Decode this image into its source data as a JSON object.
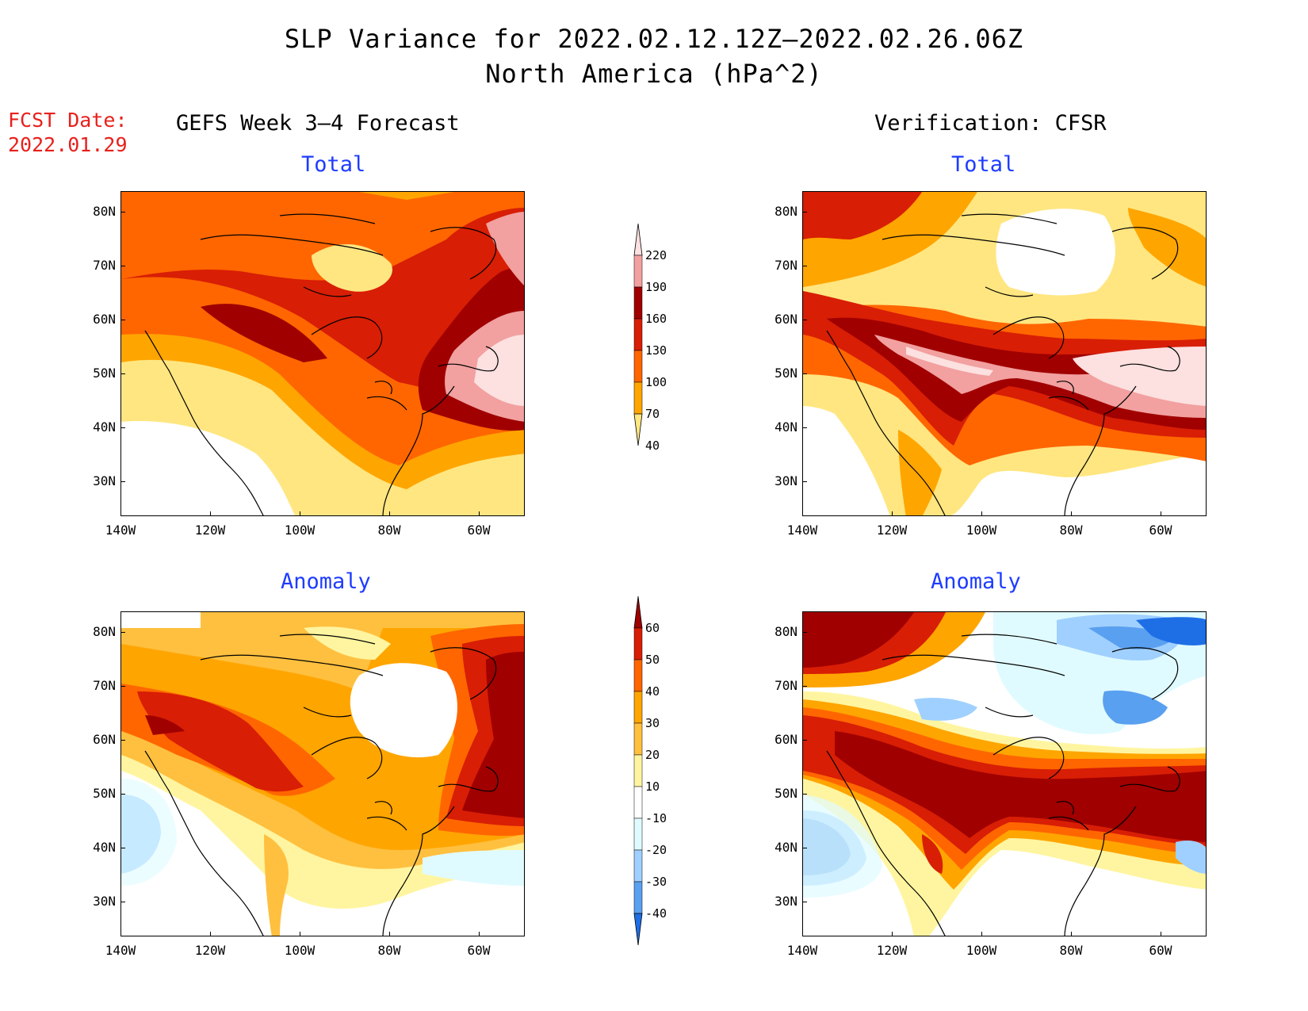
{
  "header": {
    "title_line1": "SLP Variance for 2022.02.12.12Z–2022.02.26.06Z",
    "title_line2": "North America (hPa^2)",
    "fcst_label": "FCST Date:",
    "fcst_date": "2022.01.29"
  },
  "columns": {
    "left": "GEFS Week 3–4 Forecast",
    "right": "Verification: CFSR"
  },
  "panels": {
    "total": "Total",
    "anomaly": "Anomaly"
  },
  "axes": {
    "lat_labels": [
      "80N",
      "70N",
      "60N",
      "50N",
      "40N",
      "30N"
    ],
    "lon_labels": [
      "140W",
      "120W",
      "100W",
      "80W",
      "60W"
    ]
  },
  "colorbars": {
    "total": {
      "labels": [
        "220",
        "190",
        "160",
        "130",
        "100",
        "70",
        "40"
      ],
      "colors": [
        "#fde0e0",
        "#f2a0a0",
        "#a00000",
        "#d81e05",
        "#ff6600",
        "#ffa500",
        "#ffe680"
      ]
    },
    "anomaly": {
      "labels": [
        "60",
        "50",
        "40",
        "30",
        "20",
        "10",
        "-10",
        "-20",
        "-30",
        "-40"
      ],
      "colors": [
        "#a00000",
        "#d81e05",
        "#ff6600",
        "#ffa500",
        "#ffc040",
        "#fff5a0",
        "#ffffff",
        "#e0fbff",
        "#a0d0ff",
        "#5aa0f0",
        "#1e6ee6"
      ]
    }
  }
}
